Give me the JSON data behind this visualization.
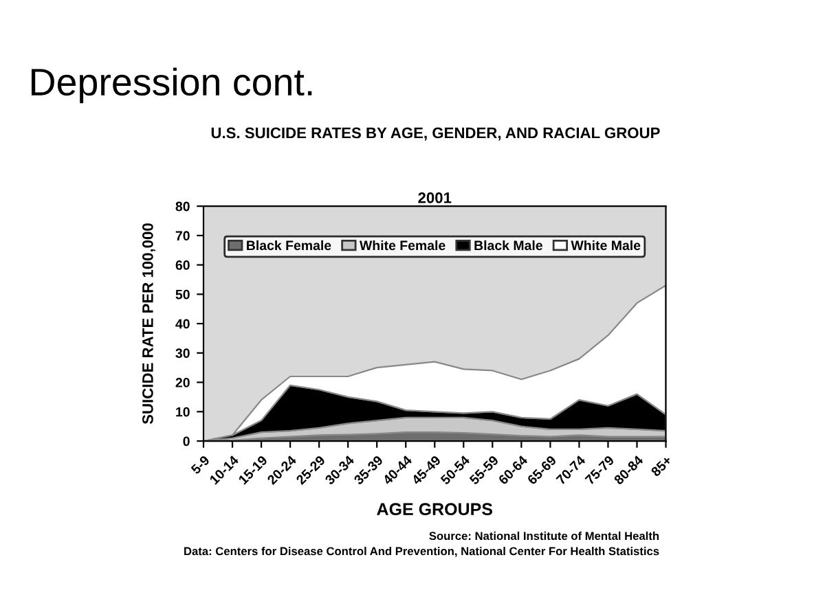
{
  "chart_data": {
    "type": "area",
    "title": "U.S. SUICIDE RATES BY AGE, GENDER, AND RACIAL GROUP",
    "subtitle": "2001",
    "xlabel": "AGE GROUPS",
    "ylabel": "SUICIDE RATE PER 100,000",
    "categories": [
      "5-9",
      "10-14",
      "15-19",
      "20-24",
      "25-29",
      "30-34",
      "35-39",
      "40-44",
      "45-49",
      "50-54",
      "55-59",
      "60-64",
      "65-69",
      "70-74",
      "75-79",
      "80-84",
      "85+"
    ],
    "stacked": true,
    "series": [
      {
        "name": "Black Female",
        "color": "#6e6e6e",
        "values": [
          0,
          0.3,
          1,
          1.5,
          2,
          2.2,
          2.5,
          3,
          3,
          2.8,
          2.3,
          1.8,
          1.5,
          2,
          1.5,
          1.5,
          1.5
        ]
      },
      {
        "name": "White Female",
        "color": "#c8c8c8",
        "values": [
          0,
          0.7,
          2,
          2,
          2.5,
          3.8,
          4.5,
          5,
          5,
          5.2,
          4.7,
          3.2,
          2.5,
          2,
          3,
          2.5,
          2
        ]
      },
      {
        "name": "Black Male",
        "color": "#000000",
        "values": [
          0,
          1,
          4,
          15.5,
          13,
          9,
          6.5,
          2.5,
          2,
          1.5,
          3,
          3,
          3.5,
          10,
          7.5,
          12,
          5.5
        ]
      },
      {
        "name": "White Male",
        "color": "#ffffff",
        "values": [
          0,
          0,
          7,
          3,
          4.5,
          7,
          11.5,
          15.5,
          17,
          15,
          14,
          13,
          16.5,
          14,
          24,
          31,
          44
        ]
      }
    ],
    "ylim": [
      0,
      80
    ],
    "yticks": [
      0,
      10,
      20,
      30,
      40,
      50,
      60,
      70,
      80
    ],
    "grid": false,
    "legend": "top",
    "annotations": [
      "Depression cont.",
      "Source: National Institute of Mental Health",
      "Data: Centers for Disease Control And Prevention, National Center For Health Statistics"
    ]
  }
}
